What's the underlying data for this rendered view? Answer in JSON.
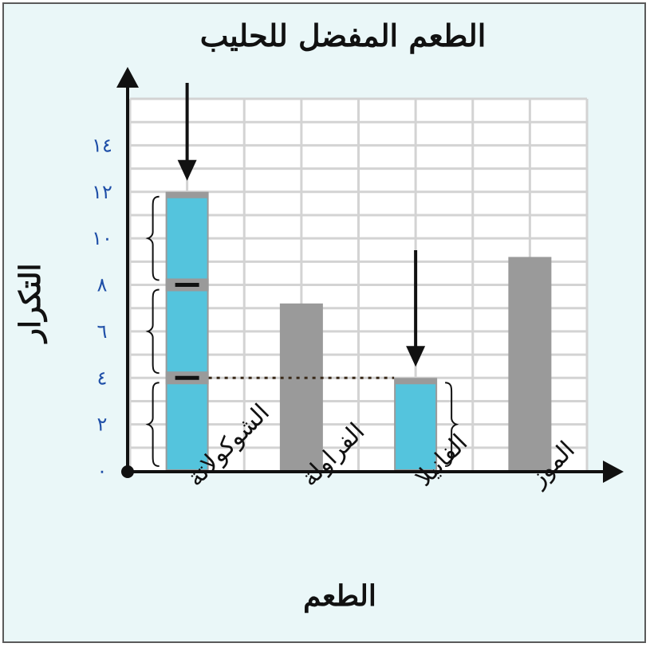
{
  "chart_data": {
    "type": "bar",
    "title": "الطعم المفضل للحليب",
    "xlabel": "الطعم",
    "ylabel": "التكرار",
    "categories": [
      "الشوكولاتة",
      "الفراولة",
      "الفانيلا",
      "الموز"
    ],
    "values": [
      12,
      7.2,
      4,
      9.2
    ],
    "yticks": [
      "٠",
      "٢",
      "٤",
      "٦",
      "٨",
      "١٠",
      "١٢",
      "١٤"
    ],
    "ylim": [
      0,
      16
    ],
    "grid": true,
    "highlighted_categories": [
      "الشوكولاتة",
      "الفانيلا"
    ],
    "segment_boundaries": [
      4,
      8
    ],
    "reference_line_value": 4,
    "colors": {
      "bar": "#9a9a9a",
      "highlight": "#54c4dd",
      "grid": "#d3d3d3",
      "plot_background": "#ffffff",
      "page_background": "#eaf7f8",
      "ytick": "#1f4fa8",
      "axis": "#111111"
    }
  }
}
